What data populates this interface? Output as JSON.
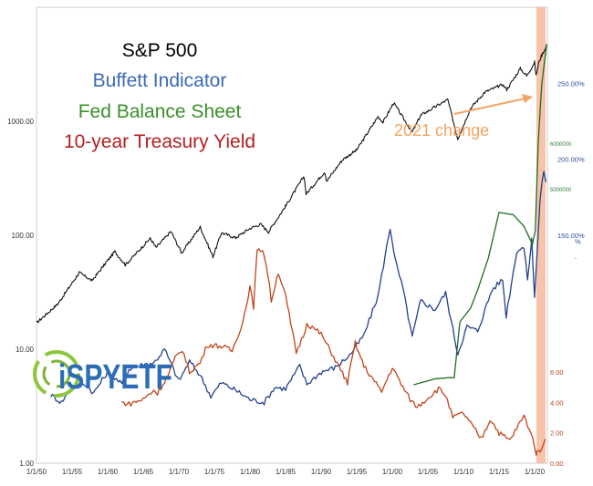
{
  "chart_data": {
    "type": "line",
    "title_lines": [
      {
        "text": "S&P 500",
        "color": "#000000"
      },
      {
        "text": "Buffett Indicator",
        "color": "#3c6ab8"
      },
      {
        "text": "Fed Balance Sheet",
        "color": "#3a8f2a"
      },
      {
        "text": "10-year Treasury Yield",
        "color": "#b41f1f"
      }
    ],
    "annotation": "2021 change",
    "annotation_color": "#f4a460",
    "x_tick_labels": [
      "1/1/50",
      "1/1/55",
      "1/1/60",
      "1/1/65",
      "1/1/70",
      "1/1/75",
      "1/1/80",
      "1/1/85",
      "1/1/90",
      "1/1/95",
      "1/1/00",
      "1/1/05",
      "1/1/10",
      "1/1/15",
      "1/1/20"
    ],
    "x_range": [
      1950,
      2021.8
    ],
    "left_axis": {
      "scale": "log",
      "range": [
        1,
        10000
      ],
      "ticks": [
        "1.00",
        "10.00",
        "100.00",
        "1000.00"
      ]
    },
    "right_axis_buffett": {
      "ticks": [
        "150.00%",
        "200.00%",
        "250.00%"
      ],
      "range": [
        0,
        300
      ],
      "unit_label": "%"
    },
    "right_axis_fed": {
      "ticks": [
        "5000000",
        "6000000"
      ],
      "range": [
        -1000000,
        9000000
      ],
      "unit_label": "-"
    },
    "right_axis_yield": {
      "ticks": [
        "0.00",
        "2.00",
        "4.00",
        "6.00"
      ],
      "range": [
        0,
        30
      ]
    },
    "series": [
      {
        "name": "S&P 500",
        "color": "#111111",
        "axis": "left",
        "x": [
          1950,
          1953,
          1956,
          1957.8,
          1961,
          1962.5,
          1966,
          1966.8,
          1968.9,
          1970.4,
          1973,
          1974.8,
          1976,
          1978,
          1980,
          1981.5,
          1982.6,
          1985,
          1987.6,
          1987.9,
          1990.5,
          1990.8,
          1993,
          1995,
          1998,
          1998.7,
          2000.2,
          2002.8,
          2004,
          2007.8,
          2009.2,
          2011,
          2013,
          2015.5,
          2016.1,
          2018,
          2018.9,
          2020,
          2020.2,
          2020.6,
          2021,
          2021.7
        ],
        "y": [
          17,
          25,
          47,
          40,
          72,
          55,
          94,
          78,
          108,
          70,
          118,
          65,
          105,
          95,
          115,
          125,
          107,
          180,
          330,
          230,
          360,
          300,
          460,
          560,
          1100,
          980,
          1450,
          800,
          1130,
          1550,
          700,
          1300,
          1800,
          2100,
          1900,
          2900,
          2500,
          3300,
          2500,
          3300,
          3800,
          4600
        ]
      },
      {
        "name": "Buffett Indicator",
        "color": "#23408e",
        "axis": "right_buffett",
        "x": [
          1952,
          1953.5,
          1955,
          1957,
          1958,
          1960,
          1962,
          1963,
          1965,
          1966.5,
          1968,
          1970,
          1971.5,
          1973,
          1974.5,
          1976,
          1978,
          1980,
          1982,
          1983.5,
          1985,
          1987,
          1988,
          1990,
          1992,
          1994,
          1996,
          1998,
          1999.7,
          2000.5,
          2001.5,
          2002.8,
          2004,
          2006,
          2007.5,
          2009.2,
          2010.5,
          2012,
          2014,
          2015.5,
          2016,
          2017.5,
          2018.5,
          2019,
          2019.6,
          2020,
          2020.8,
          2021.3,
          2021.6
        ],
        "y": [
          45,
          40,
          50,
          52,
          46,
          60,
          52,
          62,
          65,
          66,
          75,
          54,
          67,
          58,
          44,
          53,
          48,
          42,
          40,
          50,
          49,
          64,
          52,
          60,
          63,
          71,
          84,
          110,
          155,
          132,
          115,
          83,
          107,
          101,
          112,
          72,
          90,
          87,
          114,
          121,
          97,
          140,
          142,
          121,
          147,
          110,
          175,
          193,
          185
        ]
      },
      {
        "name": "Fed Balance Sheet",
        "color": "#1f6d1f",
        "axis": "right_fed",
        "x": [
          2003,
          2006,
          2007.5,
          2008,
          2008.7,
          2009.5,
          2011,
          2012,
          2013.5,
          2015,
          2017,
          2018.5,
          2019.7,
          2020.1,
          2020.5,
          2021,
          2021.7
        ],
        "y": [
          720000,
          850000,
          870000,
          880000,
          870000,
          2100000,
          2400000,
          2800000,
          3500000,
          4500000,
          4450000,
          4200000,
          3800000,
          4100000,
          6000000,
          7300000,
          8200000
        ]
      },
      {
        "name": "10-year Treasury Yield",
        "color": "#c0441a",
        "axis": "right_yield",
        "x": [
          1962,
          1963,
          1965,
          1966.5,
          1967,
          1968.5,
          1969.5,
          1970.5,
          1971.5,
          1973,
          1974,
          1976,
          1977.5,
          1979,
          1980,
          1980.5,
          1981,
          1981.8,
          1982.5,
          1983,
          1984,
          1985,
          1986.5,
          1987.5,
          1988,
          1990,
          1992,
          1993.7,
          1994.8,
          1996,
          1998.5,
          2000,
          2001.5,
          2002.5,
          2003.5,
          2005,
          2006.5,
          2007.5,
          2008.5,
          2010,
          2012.5,
          2013.8,
          2015,
          2016.5,
          2018.5,
          2019.5,
          2020.3,
          2020.8,
          2021.5
        ],
        "y": [
          4.0,
          3.9,
          4.2,
          4.8,
          4.6,
          5.8,
          6.9,
          7.5,
          6.0,
          6.6,
          7.8,
          7.7,
          7.4,
          9.3,
          11.6,
          10.3,
          13.9,
          14.1,
          12.5,
          10.7,
          12.6,
          11.0,
          7.3,
          8.4,
          9.2,
          8.5,
          6.8,
          5.3,
          7.9,
          6.4,
          4.7,
          6.3,
          5.0,
          4.2,
          3.7,
          4.3,
          4.9,
          4.5,
          3.0,
          3.3,
          1.6,
          2.9,
          2.0,
          1.5,
          3.1,
          2.0,
          0.6,
          0.9,
          1.6
        ]
      }
    ],
    "grid": false,
    "legend_position": "top-left"
  },
  "logo": {
    "text": "iSPYETF"
  }
}
